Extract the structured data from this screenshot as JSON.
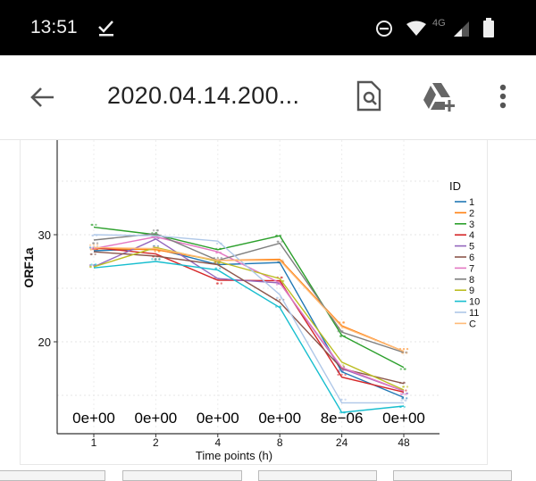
{
  "status_bar": {
    "time": "13:51",
    "network": "4G"
  },
  "app_bar": {
    "title": "2020.04.14.200..."
  },
  "chart_data": {
    "type": "line",
    "title": "",
    "xlabel": "Time points (h)",
    "ylabel": "ORF1a",
    "categories": [
      "1",
      "2",
      "4",
      "8",
      "24",
      "48"
    ],
    "ylim": [
      11.5,
      39
    ],
    "yticks": [
      20,
      30
    ],
    "grid": true,
    "legend": {
      "title": "ID",
      "placement": "right"
    },
    "annotations": [
      "0e+00",
      "0e+00",
      "0e+00",
      "0e+00",
      "8e−06",
      "0e+00"
    ],
    "series": [
      {
        "name": "1",
        "color": "#1f77b4",
        "values": [
          28.5,
          28.7,
          27.2,
          27.4,
          17.2,
          14.8
        ]
      },
      {
        "name": "2",
        "color": "#ff7f0e",
        "values": [
          28.7,
          28.6,
          27.6,
          27.7,
          21.5,
          19.1
        ]
      },
      {
        "name": "3",
        "color": "#2ca02c",
        "values": [
          30.7,
          30.0,
          28.6,
          29.9,
          20.6,
          17.6
        ]
      },
      {
        "name": "4",
        "color": "#d62728",
        "values": [
          28.8,
          28.2,
          25.75,
          25.7,
          16.7,
          15.3
        ]
      },
      {
        "name": "5",
        "color": "#9467bd",
        "values": [
          27.0,
          29.6,
          25.9,
          25.5,
          17.5,
          15.4
        ]
      },
      {
        "name": "6",
        "color": "#8c564b",
        "values": [
          28.4,
          28.0,
          27.2,
          23.7,
          17.5,
          16.1
        ]
      },
      {
        "name": "7",
        "color": "#e377c2",
        "values": [
          28.7,
          29.8,
          28.4,
          25.5,
          17.6,
          15.4
        ]
      },
      {
        "name": "8",
        "color": "#7f7f7f",
        "values": [
          29.5,
          30.1,
          27.6,
          29.2,
          20.9,
          19.0
        ]
      },
      {
        "name": "9",
        "color": "#bcbd22",
        "values": [
          27.0,
          28.8,
          27.5,
          25.9,
          18.1,
          15.5
        ]
      },
      {
        "name": "10",
        "color": "#17becf",
        "values": [
          26.9,
          27.5,
          26.7,
          23.2,
          13.4,
          14.0
        ]
      },
      {
        "name": "11",
        "color": "#aec7e8",
        "values": [
          30.0,
          29.9,
          29.4,
          24.4,
          14.3,
          14.3
        ]
      },
      {
        "name": "C",
        "color": "#ffbb78",
        "values": [
          28.8,
          28.7,
          27.6,
          27.6,
          21.4,
          19.1
        ]
      }
    ]
  }
}
